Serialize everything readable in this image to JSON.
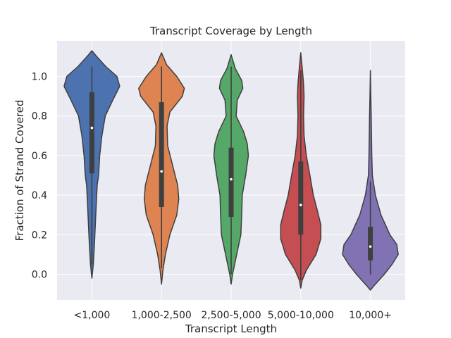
{
  "chart_data": {
    "type": "violin",
    "title": "Transcript Coverage by Length",
    "xlabel": "Transcript Length",
    "ylabel": "Fraction of Strand Covered",
    "ylim": [
      -0.13,
      1.18
    ],
    "yticks": [
      0.0,
      0.2,
      0.4,
      0.6,
      0.8,
      1.0
    ],
    "ytick_labels": [
      "0.0",
      "0.2",
      "0.4",
      "0.6",
      "0.8",
      "1.0"
    ],
    "grid": true,
    "categories": [
      "<1,000",
      "1,000-2,500",
      "2,500-5,000",
      "5,000-10,000",
      "10,000+"
    ],
    "colors": [
      "#4c72b0",
      "#dd8452",
      "#55a868",
      "#c44e52",
      "#8172b3"
    ],
    "series": [
      {
        "category": "<1,000",
        "min": -0.02,
        "max": 1.13,
        "whisker_low": 0.05,
        "whisker_high": 1.05,
        "q1": 0.51,
        "median": 0.74,
        "q3": 0.92,
        "profile": [
          [
            -0.02,
            0.0
          ],
          [
            0.05,
            0.05
          ],
          [
            0.15,
            0.09
          ],
          [
            0.3,
            0.14
          ],
          [
            0.45,
            0.19
          ],
          [
            0.5,
            0.24
          ],
          [
            0.6,
            0.28
          ],
          [
            0.7,
            0.36
          ],
          [
            0.8,
            0.48
          ],
          [
            0.88,
            0.75
          ],
          [
            0.95,
            1.0
          ],
          [
            1.0,
            0.9
          ],
          [
            1.05,
            0.5
          ],
          [
            1.1,
            0.18
          ],
          [
            1.13,
            0.0
          ]
        ]
      },
      {
        "category": "1,000-2,500",
        "min": -0.05,
        "max": 1.12,
        "whisker_low": 0.03,
        "whisker_high": 1.05,
        "q1": 0.34,
        "median": 0.52,
        "q3": 0.87,
        "profile": [
          [
            -0.05,
            0.0
          ],
          [
            0.02,
            0.05
          ],
          [
            0.1,
            0.14
          ],
          [
            0.2,
            0.3
          ],
          [
            0.3,
            0.55
          ],
          [
            0.38,
            0.62
          ],
          [
            0.45,
            0.58
          ],
          [
            0.55,
            0.4
          ],
          [
            0.65,
            0.22
          ],
          [
            0.75,
            0.2
          ],
          [
            0.82,
            0.3
          ],
          [
            0.9,
            0.75
          ],
          [
            0.94,
            0.82
          ],
          [
            1.0,
            0.55
          ],
          [
            1.06,
            0.18
          ],
          [
            1.12,
            0.0
          ]
        ]
      },
      {
        "category": "2,500-5,000",
        "min": -0.05,
        "max": 1.11,
        "whisker_low": 0.0,
        "whisker_high": 1.05,
        "q1": 0.29,
        "median": 0.48,
        "q3": 0.64,
        "profile": [
          [
            -0.05,
            0.0
          ],
          [
            0.0,
            0.05
          ],
          [
            0.1,
            0.2
          ],
          [
            0.2,
            0.35
          ],
          [
            0.3,
            0.38
          ],
          [
            0.4,
            0.4
          ],
          [
            0.5,
            0.52
          ],
          [
            0.6,
            0.62
          ],
          [
            0.66,
            0.58
          ],
          [
            0.72,
            0.45
          ],
          [
            0.8,
            0.18
          ],
          [
            0.88,
            0.22
          ],
          [
            0.94,
            0.42
          ],
          [
            0.98,
            0.38
          ],
          [
            1.04,
            0.15
          ],
          [
            1.11,
            0.0
          ]
        ]
      },
      {
        "category": "5,000-10,000",
        "min": -0.07,
        "max": 1.12,
        "whisker_low": -0.03,
        "whisker_high": 1.03,
        "q1": 0.2,
        "median": 0.35,
        "q3": 0.57,
        "profile": [
          [
            -0.07,
            0.0
          ],
          [
            -0.03,
            0.05
          ],
          [
            0.02,
            0.2
          ],
          [
            0.1,
            0.55
          ],
          [
            0.18,
            0.72
          ],
          [
            0.25,
            0.72
          ],
          [
            0.32,
            0.6
          ],
          [
            0.4,
            0.45
          ],
          [
            0.5,
            0.33
          ],
          [
            0.6,
            0.2
          ],
          [
            0.7,
            0.12
          ],
          [
            0.8,
            0.1
          ],
          [
            0.9,
            0.12
          ],
          [
            0.96,
            0.1
          ],
          [
            1.03,
            0.06
          ],
          [
            1.12,
            0.0
          ]
        ]
      },
      {
        "category": "10,000+",
        "min": -0.08,
        "max": 1.03,
        "whisker_low": 0.0,
        "whisker_high": 0.47,
        "q1": 0.07,
        "median": 0.14,
        "q3": 0.24,
        "profile": [
          [
            -0.08,
            0.0
          ],
          [
            -0.06,
            0.12
          ],
          [
            0.0,
            0.5
          ],
          [
            0.05,
            0.78
          ],
          [
            0.1,
            1.0
          ],
          [
            0.15,
            0.95
          ],
          [
            0.2,
            0.7
          ],
          [
            0.3,
            0.38
          ],
          [
            0.4,
            0.18
          ],
          [
            0.5,
            0.07
          ],
          [
            0.6,
            0.05
          ],
          [
            0.7,
            0.04
          ],
          [
            0.8,
            0.03
          ],
          [
            0.9,
            0.015
          ],
          [
            1.03,
            0.0
          ]
        ]
      }
    ]
  }
}
